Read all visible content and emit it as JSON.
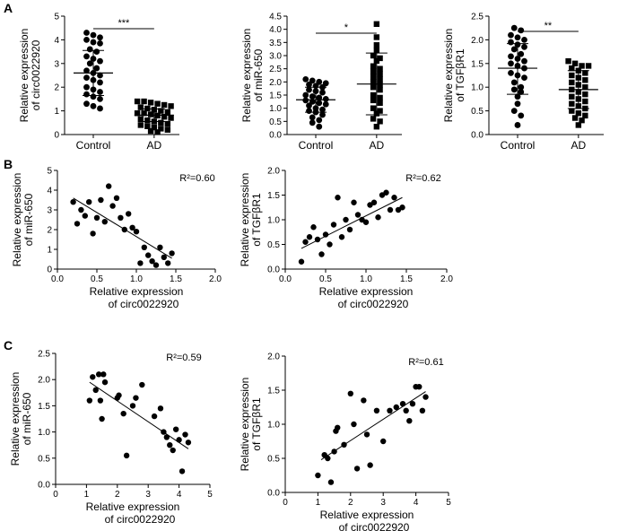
{
  "panels": [
    {
      "label": "A"
    },
    {
      "label": "B"
    },
    {
      "label": "C"
    }
  ],
  "chart_data": [
    {
      "id": "A1",
      "type": "scatter",
      "subtype": "dot-plot",
      "categories": [
        "Control",
        "AD"
      ],
      "ylabel": [
        "Relative expression",
        "of circ0022920"
      ],
      "ylim": [
        0,
        5
      ],
      "yticks": [
        0,
        1,
        2,
        3,
        4,
        5
      ],
      "significance": "***",
      "summary": [
        {
          "mean": 2.6,
          "sd_low": 1.65,
          "sd_high": 3.55
        },
        {
          "mean": 0.82,
          "sd_low": 0.55,
          "sd_high": 1.08
        }
      ],
      "series": [
        {
          "name": "Control",
          "values": [
            4.3,
            4.2,
            4.1,
            4.0,
            3.9,
            3.85,
            3.6,
            3.5,
            3.3,
            3.2,
            3.1,
            3.0,
            2.8,
            2.7,
            2.6,
            2.5,
            2.4,
            2.3,
            2.2,
            2.0,
            1.9,
            1.8,
            1.7,
            1.6,
            1.5,
            1.3,
            1.2,
            1.1
          ]
        },
        {
          "name": "AD",
          "values": [
            1.4,
            1.4,
            1.35,
            1.3,
            1.25,
            1.2,
            1.15,
            1.1,
            1.05,
            1.0,
            0.95,
            0.9,
            0.9,
            0.85,
            0.8,
            0.75,
            0.7,
            0.65,
            0.6,
            0.55,
            0.5,
            0.45,
            0.4,
            0.35,
            0.3,
            0.25,
            0.2,
            0.15,
            0.1
          ]
        }
      ]
    },
    {
      "id": "A2",
      "type": "scatter",
      "subtype": "dot-plot",
      "categories": [
        "Control",
        "AD"
      ],
      "ylabel": [
        "Relative expression",
        "of miR-650"
      ],
      "ylim": [
        0,
        4.5
      ],
      "yticks": [
        0.0,
        0.5,
        1.0,
        1.5,
        2.0,
        2.5,
        3.0,
        3.5,
        4.0,
        4.5
      ],
      "significance": "*",
      "summary": [
        {
          "mean": 1.32,
          "sd_low": 0.85,
          "sd_high": 1.8
        },
        {
          "mean": 1.92,
          "sd_low": 0.75,
          "sd_high": 3.1
        }
      ],
      "series": [
        {
          "name": "Control",
          "values": [
            2.1,
            2.05,
            2.0,
            1.95,
            1.9,
            1.85,
            1.8,
            1.7,
            1.65,
            1.6,
            1.5,
            1.45,
            1.4,
            1.35,
            1.3,
            1.25,
            1.2,
            1.15,
            1.1,
            1.0,
            0.95,
            0.9,
            0.85,
            0.75,
            0.65,
            0.55,
            0.45,
            0.3
          ]
        },
        {
          "name": "AD",
          "values": [
            4.2,
            3.7,
            3.4,
            3.2,
            3.0,
            2.9,
            2.8,
            2.6,
            2.5,
            2.4,
            2.3,
            2.2,
            2.1,
            2.0,
            1.9,
            1.8,
            1.7,
            1.5,
            1.4,
            1.3,
            1.2,
            1.0,
            0.9,
            0.8,
            0.6,
            0.5,
            0.3
          ]
        }
      ]
    },
    {
      "id": "A3",
      "type": "scatter",
      "subtype": "dot-plot",
      "categories": [
        "Control",
        "AD"
      ],
      "ylabel": [
        "Relative expression",
        "of TGFβR1"
      ],
      "ylim": [
        0,
        2.5
      ],
      "yticks": [
        0.0,
        0.5,
        1.0,
        1.5,
        2.0,
        2.5
      ],
      "significance": "**",
      "summary": [
        {
          "mean": 1.4,
          "sd_low": 0.85,
          "sd_high": 1.92
        },
        {
          "mean": 0.95,
          "sd_low": 0.55,
          "sd_high": 1.35
        }
      ],
      "series": [
        {
          "name": "Control",
          "values": [
            2.25,
            2.2,
            2.1,
            2.05,
            2.0,
            1.95,
            1.9,
            1.85,
            1.8,
            1.7,
            1.65,
            1.6,
            1.55,
            1.5,
            1.45,
            1.4,
            1.3,
            1.25,
            1.2,
            1.1,
            1.0,
            0.95,
            0.9,
            0.8,
            0.65,
            0.5,
            0.4,
            0.2
          ]
        },
        {
          "name": "AD",
          "values": [
            1.55,
            1.5,
            1.45,
            1.45,
            1.4,
            1.35,
            1.3,
            1.25,
            1.2,
            1.15,
            1.1,
            1.05,
            1.0,
            0.95,
            0.9,
            0.85,
            0.8,
            0.75,
            0.7,
            0.65,
            0.6,
            0.55,
            0.5,
            0.45,
            0.4,
            0.35,
            0.3,
            0.2
          ]
        }
      ]
    },
    {
      "id": "B1",
      "type": "scatter",
      "subtype": "correlation",
      "xlabel": [
        "Relative expression",
        "of circ0022920"
      ],
      "ylabel": [
        "Relative expression",
        "of miR-650"
      ],
      "xlim": [
        0,
        2.0
      ],
      "xticks": [
        0.0,
        0.5,
        1.0,
        1.5,
        2.0
      ],
      "ylim": [
        0,
        5
      ],
      "yticks": [
        0,
        1,
        2,
        3,
        4,
        5
      ],
      "r2": "R²=0.60",
      "fit": {
        "x": [
          0.2,
          1.45
        ],
        "y": [
          3.6,
          0.55
        ]
      },
      "points": {
        "x": [
          0.2,
          0.25,
          0.35,
          0.4,
          0.45,
          0.5,
          0.55,
          0.6,
          0.65,
          0.7,
          0.75,
          0.8,
          0.85,
          0.9,
          0.95,
          1.0,
          1.05,
          1.1,
          1.15,
          1.2,
          1.25,
          1.3,
          1.35,
          1.4,
          1.45,
          0.3
        ],
        "y": [
          3.4,
          2.3,
          2.7,
          3.4,
          1.8,
          2.6,
          3.5,
          2.4,
          4.2,
          3.2,
          3.6,
          2.6,
          2.0,
          2.8,
          2.1,
          1.9,
          0.3,
          1.1,
          0.7,
          0.4,
          0.2,
          1.1,
          0.6,
          0.3,
          0.8,
          3.0
        ]
      }
    },
    {
      "id": "B2",
      "type": "scatter",
      "subtype": "correlation",
      "xlabel": [
        "Relative expression",
        "of circ0022920"
      ],
      "ylabel": [
        "Relative expression",
        "of TGFβR1"
      ],
      "xlim": [
        0,
        2.0
      ],
      "xticks": [
        0.0,
        0.5,
        1.0,
        1.5,
        2.0
      ],
      "ylim": [
        0,
        2.0
      ],
      "yticks": [
        0.0,
        0.5,
        1.0,
        1.5,
        2.0
      ],
      "r2": "R²=0.62",
      "fit": {
        "x": [
          0.2,
          1.45
        ],
        "y": [
          0.42,
          1.45
        ]
      },
      "points": {
        "x": [
          0.2,
          0.25,
          0.35,
          0.4,
          0.45,
          0.5,
          0.55,
          0.6,
          0.65,
          0.7,
          0.75,
          0.8,
          0.85,
          0.9,
          0.95,
          1.0,
          1.05,
          1.1,
          1.15,
          1.2,
          1.25,
          1.3,
          1.35,
          1.4,
          1.45,
          0.3
        ],
        "y": [
          0.15,
          0.55,
          0.85,
          0.6,
          0.3,
          0.7,
          0.5,
          0.9,
          1.45,
          0.65,
          1.0,
          0.8,
          1.35,
          1.1,
          1.0,
          0.95,
          1.3,
          1.35,
          1.05,
          1.5,
          1.55,
          1.2,
          1.45,
          1.2,
          1.25,
          0.65
        ]
      }
    },
    {
      "id": "C1",
      "type": "scatter",
      "subtype": "correlation",
      "xlabel": [
        "Relative expression",
        "of circ0022920"
      ],
      "ylabel": [
        "Relative expression",
        "of miR-650"
      ],
      "xlim": [
        0,
        5
      ],
      "xticks": [
        0,
        1,
        2,
        3,
        4,
        5
      ],
      "ylim": [
        0,
        2.5
      ],
      "yticks": [
        0.0,
        0.5,
        1.0,
        1.5,
        2.0,
        2.5
      ],
      "r2": "R²=0.59",
      "fit": {
        "x": [
          1.1,
          4.3
        ],
        "y": [
          1.95,
          0.68
        ]
      },
      "points": {
        "x": [
          1.1,
          1.2,
          1.4,
          1.45,
          1.5,
          1.55,
          1.6,
          2.0,
          2.05,
          2.2,
          2.3,
          2.5,
          2.6,
          2.8,
          3.2,
          3.4,
          3.5,
          3.6,
          3.7,
          3.8,
          3.9,
          4.0,
          4.1,
          4.2,
          4.3,
          1.3
        ],
        "y": [
          1.6,
          2.05,
          2.1,
          1.6,
          1.25,
          2.1,
          1.95,
          1.65,
          1.7,
          1.35,
          0.55,
          1.5,
          1.65,
          1.9,
          1.3,
          1.45,
          1.0,
          0.9,
          0.75,
          0.65,
          1.05,
          0.85,
          0.25,
          0.95,
          0.8,
          1.8
        ]
      }
    },
    {
      "id": "C2",
      "type": "scatter",
      "subtype": "correlation",
      "xlabel": [
        "Relative expression",
        "of circ0022920"
      ],
      "ylabel": [
        "Relative expression",
        "of TGFβR1"
      ],
      "xlim": [
        0,
        5
      ],
      "xticks": [
        0,
        1,
        2,
        3,
        4,
        5
      ],
      "ylim": [
        0,
        2.0
      ],
      "yticks": [
        0.0,
        0.5,
        1.0,
        1.5,
        2.0
      ],
      "r2": "R²=0.61",
      "fit": {
        "x": [
          1.1,
          4.3
        ],
        "y": [
          0.48,
          1.48
        ]
      },
      "points": {
        "x": [
          1.0,
          1.2,
          1.3,
          1.4,
          1.5,
          1.55,
          1.6,
          1.8,
          2.0,
          2.1,
          2.2,
          2.4,
          2.5,
          2.6,
          2.8,
          3.0,
          3.2,
          3.4,
          3.6,
          3.7,
          3.8,
          3.9,
          4.0,
          4.1,
          4.2,
          4.3
        ],
        "y": [
          0.25,
          0.55,
          0.5,
          0.15,
          0.6,
          0.9,
          0.95,
          0.7,
          1.45,
          1.0,
          0.35,
          1.35,
          0.85,
          0.4,
          1.2,
          0.75,
          1.2,
          1.25,
          1.3,
          1.2,
          1.05,
          1.3,
          1.55,
          1.55,
          1.2,
          1.4
        ]
      }
    }
  ]
}
